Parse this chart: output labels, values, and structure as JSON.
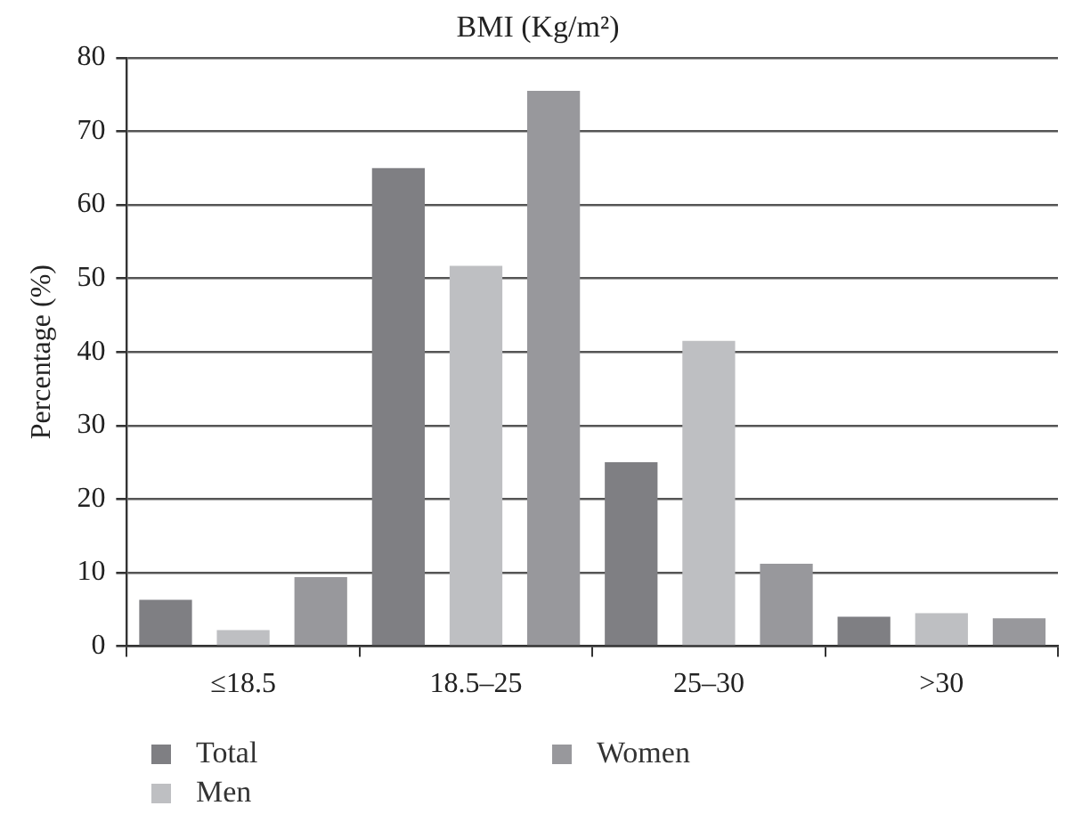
{
  "chart_data": {
    "type": "bar",
    "title": "BMI (Kg/m²)",
    "ylabel": "Percentage (%)",
    "categories": [
      "≤18.5",
      "18.5–25",
      "25–30",
      ">30"
    ],
    "series": [
      {
        "name": "Total",
        "color": "#7f7f83",
        "values": [
          6.3,
          65,
          25,
          4
        ]
      },
      {
        "name": "Men",
        "color": "#bebfc2",
        "values": [
          2.2,
          51.7,
          41.5,
          4.5
        ]
      },
      {
        "name": "Women",
        "color": "#98989c",
        "values": [
          9.4,
          75.5,
          11.2,
          3.8
        ]
      }
    ],
    "ylim": [
      0,
      80
    ],
    "yticks": [
      0,
      10,
      20,
      30,
      40,
      50,
      60,
      70,
      80
    ],
    "grid": "y",
    "legend": "bottom"
  }
}
